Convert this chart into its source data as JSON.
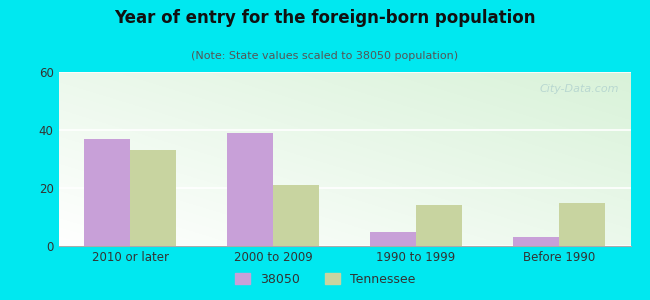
{
  "title": "Year of entry for the foreign-born population",
  "subtitle": "(Note: State values scaled to 38050 population)",
  "categories": [
    "2010 or later",
    "2000 to 2009",
    "1990 to 1999",
    "Before 1990"
  ],
  "values_38050": [
    37,
    39,
    5,
    3
  ],
  "values_tennessee": [
    33,
    21,
    14,
    15
  ],
  "color_38050": "#c8a0d8",
  "color_tennessee": "#c8d4a0",
  "background_outer": "#00e8f0",
  "ylim": [
    0,
    60
  ],
  "yticks": [
    0,
    20,
    40,
    60
  ],
  "bar_width": 0.32,
  "legend_label_38050": "38050",
  "legend_label_tennessee": "Tennessee",
  "grad_colors": [
    "#c8e8c8",
    "#ddf0dd",
    "#eef8ee",
    "#f8fffa",
    "#ffffff"
  ],
  "watermark": "City-Data.com"
}
